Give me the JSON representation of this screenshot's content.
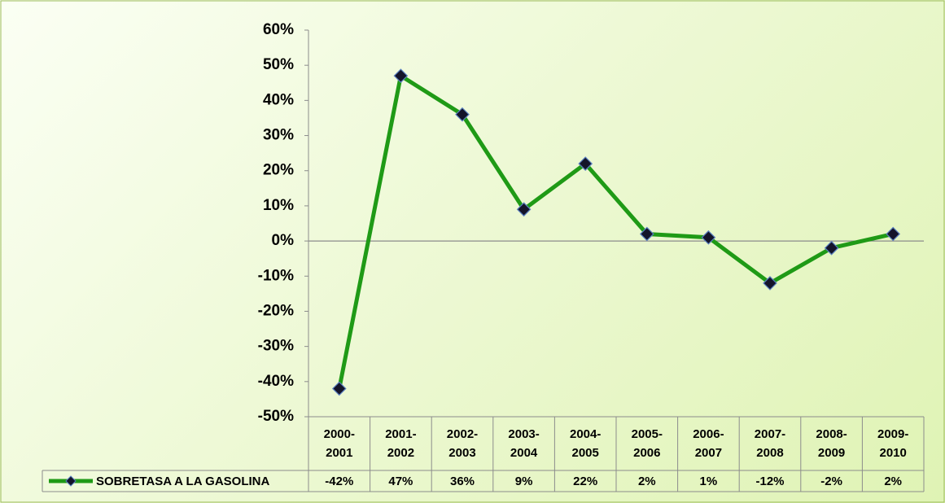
{
  "chart_data": {
    "type": "line",
    "categories": [
      "2000-2001",
      "2001-2002",
      "2002-2003",
      "2003-2004",
      "2004-2005",
      "2005-2006",
      "2006-2007",
      "2007-2008",
      "2008-2009",
      "2009-2010"
    ],
    "series": [
      {
        "name": "SOBRETASA A LA GASOLINA",
        "color": "#1f9a16",
        "values": [
          -42,
          47,
          36,
          9,
          22,
          2,
          1,
          -12,
          -2,
          2
        ],
        "value_labels": [
          "-42%",
          "47%",
          "36%",
          "9%",
          "22%",
          "2%",
          "1%",
          "-12%",
          "-2%",
          "2%"
        ]
      }
    ],
    "ylim": [
      -50,
      60
    ],
    "yticks": [
      {
        "value": -50,
        "label": "-50%"
      },
      {
        "value": -40,
        "label": "-40%"
      },
      {
        "value": -30,
        "label": "-30%"
      },
      {
        "value": -20,
        "label": "-20%"
      },
      {
        "value": -10,
        "label": "-10%"
      },
      {
        "value": 0,
        "label": "0%"
      },
      {
        "value": 10,
        "label": "10%"
      },
      {
        "value": 20,
        "label": "20%"
      },
      {
        "value": 30,
        "label": "30%"
      },
      {
        "value": 40,
        "label": "40%"
      },
      {
        "value": 50,
        "label": "50%"
      },
      {
        "value": 60,
        "label": "60%"
      }
    ],
    "grid": false
  }
}
